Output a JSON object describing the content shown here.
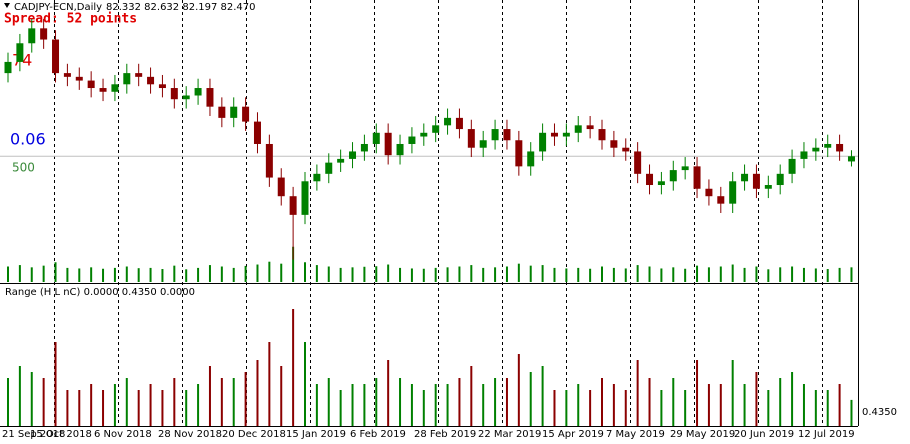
{
  "header": {
    "symbol": "CADJPY-ECN,Daily",
    "ohlc": "82.332 82.632 82.197 82.470",
    "spread": "Spread: 52 points",
    "label_red": "74",
    "label_blue": "0.06",
    "label_green": "500"
  },
  "x_labels": [
    "21 Sep 2018",
    "15 Oct 2018",
    "6 Nov 2018",
    "28 Nov 2018",
    "20 Dec 2018",
    "15 Jan 2019",
    "6 Feb 2019",
    "28 Feb 2019",
    "22 Mar 2019",
    "15 Apr 2019",
    "7 May 2019",
    "29 May 2019",
    "20 Jun 2019",
    "12 Jul 2019"
  ],
  "chart_data": [
    {
      "type": "candlestick",
      "up_color": "#008000",
      "down_color": "#8b0000",
      "volume_color": "#008000",
      "ylim": [
        79.1,
        86.66
      ],
      "volume_lim": [
        0,
        1000
      ],
      "open": [
        84.7,
        85.0,
        85.5,
        85.9,
        85.6,
        84.7,
        84.6,
        84.5,
        84.3,
        84.2,
        84.4,
        84.7,
        84.6,
        84.4,
        84.3,
        84.0,
        84.1,
        84.3,
        83.8,
        83.5,
        83.8,
        83.4,
        82.8,
        81.9,
        81.4,
        80.9,
        81.8,
        82.0,
        82.3,
        82.4,
        82.6,
        82.8,
        83.1,
        82.5,
        82.8,
        83.0,
        83.1,
        83.3,
        83.5,
        83.2,
        82.7,
        82.9,
        83.2,
        82.9,
        82.2,
        82.6,
        83.1,
        83.0,
        83.1,
        83.3,
        83.2,
        82.9,
        82.7,
        82.6,
        82.0,
        81.7,
        81.8,
        82.1,
        82.2,
        81.6,
        81.4,
        81.2,
        81.8,
        82.0,
        81.6,
        81.7,
        82.0,
        82.4,
        82.6,
        82.7,
        82.8,
        82.332
      ],
      "high": [
        85.25,
        85.75,
        86.15,
        86.15,
        85.85,
        84.95,
        84.85,
        84.75,
        84.55,
        84.65,
        84.95,
        84.95,
        84.85,
        84.65,
        84.55,
        84.35,
        84.55,
        84.55,
        84.05,
        84.05,
        84.05,
        83.65,
        83.05,
        82.15,
        81.65,
        82.05,
        82.25,
        82.55,
        82.65,
        82.85,
        83.05,
        83.35,
        83.35,
        83.05,
        83.25,
        83.35,
        83.55,
        83.75,
        83.75,
        83.45,
        83.15,
        83.45,
        83.45,
        83.15,
        82.85,
        83.35,
        83.35,
        83.35,
        83.55,
        83.55,
        83.45,
        83.15,
        82.95,
        82.85,
        82.25,
        82.05,
        82.35,
        82.45,
        82.45,
        81.85,
        81.65,
        82.05,
        82.25,
        82.25,
        81.95,
        82.25,
        82.65,
        82.85,
        82.95,
        83.05,
        83.05,
        82.632
      ],
      "low": [
        84.45,
        84.75,
        85.25,
        85.35,
        84.45,
        84.35,
        84.25,
        84.05,
        83.95,
        83.95,
        84.15,
        84.35,
        84.15,
        84.05,
        83.75,
        83.75,
        83.85,
        83.55,
        83.25,
        83.25,
        83.15,
        82.55,
        81.65,
        81.15,
        79.7,
        80.65,
        81.55,
        81.75,
        82.05,
        82.15,
        82.35,
        82.55,
        82.25,
        82.25,
        82.55,
        82.75,
        82.85,
        83.05,
        82.95,
        82.45,
        82.45,
        82.65,
        82.65,
        81.95,
        81.95,
        82.35,
        82.75,
        82.75,
        82.85,
        82.95,
        82.65,
        82.45,
        82.35,
        81.75,
        81.45,
        81.45,
        81.55,
        81.85,
        81.35,
        81.15,
        80.95,
        80.95,
        81.55,
        81.35,
        81.35,
        81.45,
        81.75,
        82.15,
        82.35,
        82.45,
        82.35,
        82.197
      ],
      "close": [
        85.0,
        85.5,
        85.9,
        85.6,
        84.7,
        84.6,
        84.5,
        84.3,
        84.2,
        84.4,
        84.7,
        84.6,
        84.4,
        84.3,
        84.0,
        84.1,
        84.3,
        83.8,
        83.5,
        83.8,
        83.4,
        82.8,
        81.9,
        81.4,
        80.9,
        81.8,
        82.0,
        82.3,
        82.4,
        82.6,
        82.8,
        83.1,
        82.5,
        82.8,
        83.0,
        83.1,
        83.3,
        83.5,
        83.2,
        82.7,
        82.9,
        83.2,
        82.9,
        82.2,
        82.6,
        83.1,
        83.0,
        83.1,
        83.3,
        83.2,
        82.9,
        82.7,
        82.6,
        82.0,
        81.7,
        81.8,
        82.1,
        82.2,
        81.6,
        81.4,
        81.2,
        81.8,
        82.0,
        81.6,
        81.7,
        82.0,
        82.4,
        82.6,
        82.7,
        82.8,
        82.6,
        82.47
      ],
      "volume": [
        55,
        60,
        52,
        58,
        70,
        50,
        48,
        52,
        47,
        50,
        55,
        49,
        50,
        46,
        58,
        45,
        50,
        60,
        55,
        50,
        57,
        62,
        72,
        65,
        125,
        70,
        60,
        55,
        50,
        52,
        54,
        56,
        62,
        50,
        48,
        47,
        50,
        52,
        55,
        60,
        50,
        52,
        55,
        65,
        58,
        60,
        50,
        48,
        50,
        47,
        55,
        50,
        48,
        60,
        55,
        48,
        52,
        47,
        58,
        52,
        55,
        62,
        50,
        55,
        45,
        52,
        55,
        50,
        48,
        46,
        50,
        52
      ]
    },
    {
      "type": "bar",
      "title": "Range (H L nC) 0.0000 0.4350 0.0000",
      "ylim": [
        0,
        2.1
      ],
      "current_label": "0.4350",
      "values": [
        0.8,
        1.0,
        0.9,
        0.8,
        1.4,
        0.6,
        0.6,
        0.7,
        0.6,
        0.7,
        0.8,
        0.6,
        0.7,
        0.6,
        0.8,
        0.6,
        0.7,
        1.0,
        0.8,
        0.8,
        0.9,
        1.1,
        1.4,
        1.0,
        1.95,
        1.4,
        0.7,
        0.8,
        0.6,
        0.7,
        0.7,
        0.8,
        1.1,
        0.8,
        0.7,
        0.6,
        0.7,
        0.7,
        0.8,
        1.0,
        0.7,
        0.8,
        0.8,
        1.2,
        0.9,
        1.0,
        0.6,
        0.6,
        0.7,
        0.6,
        0.8,
        0.7,
        0.6,
        1.1,
        0.8,
        0.6,
        0.8,
        0.6,
        1.1,
        0.7,
        0.7,
        1.1,
        0.7,
        0.9,
        0.6,
        0.8,
        0.9,
        0.7,
        0.6,
        0.6,
        0.7,
        0.435
      ]
    }
  ]
}
